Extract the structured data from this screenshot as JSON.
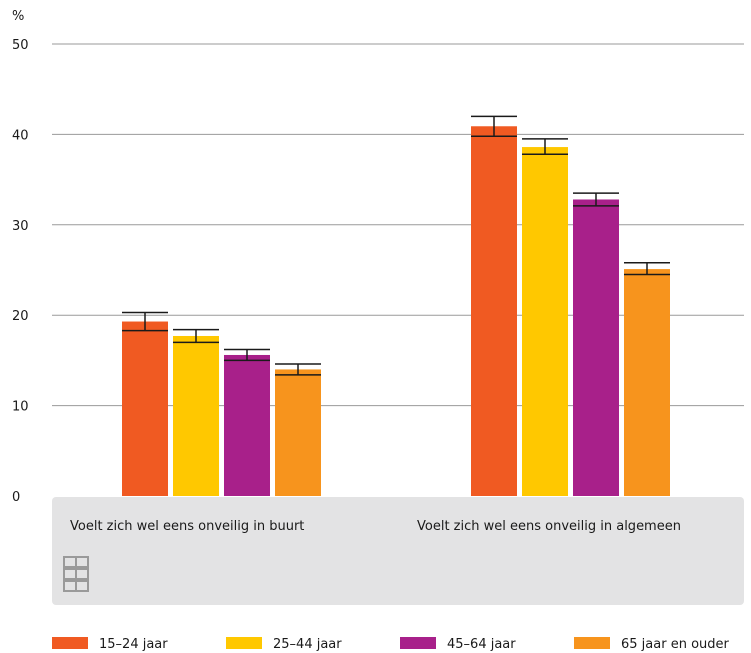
{
  "chart_data": {
    "type": "bar",
    "y_unit": "%",
    "categories": [
      "Voelt zich wel eens onveilig in buurt",
      "Voelt zich wel eens onveilig in algemeen"
    ],
    "series": [
      {
        "name": "15–24 jaar",
        "color": "#f05a22",
        "values": [
          19.3,
          40.9
        ],
        "err_low": [
          18.3,
          39.8
        ],
        "err_high": [
          20.3,
          42.0
        ]
      },
      {
        "name": "25–44 jaar",
        "color": "#ffc800",
        "values": [
          17.7,
          38.6
        ],
        "err_low": [
          17.0,
          37.8
        ],
        "err_high": [
          18.4,
          39.5
        ]
      },
      {
        "name": "45–64 jaar",
        "color": "#a8208a",
        "values": [
          15.6,
          32.8
        ],
        "err_low": [
          15.0,
          32.1
        ],
        "err_high": [
          16.2,
          33.5
        ]
      },
      {
        "name": "65 jaar en ouder",
        "color": "#f7941d",
        "values": [
          14.0,
          25.1
        ],
        "err_low": [
          13.4,
          24.5
        ],
        "err_high": [
          14.6,
          25.8
        ]
      }
    ],
    "y_ticks": [
      0,
      10,
      20,
      30,
      40,
      50
    ],
    "ylim": [
      0,
      50
    ],
    "grid": true,
    "legend_position": "bottom"
  }
}
